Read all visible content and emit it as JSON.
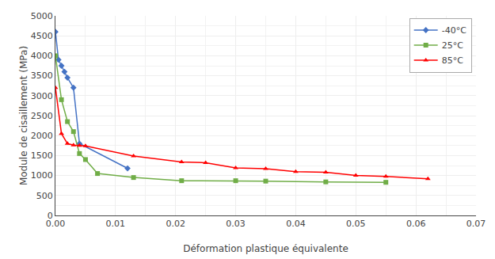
{
  "chart_data": {
    "type": "line",
    "xlabel": "Déformation plastique équivalente",
    "ylabel": "Module de cisaillement (MPa)",
    "xlim": [
      0,
      0.07
    ],
    "ylim": [
      0,
      5000
    ],
    "xticks": [
      {
        "value": 0,
        "label": "0.00"
      },
      0.01,
      0.02,
      0.03,
      0.04,
      0.05,
      0.06,
      0.07
    ],
    "yticks": [
      0,
      500,
      1000,
      1500,
      2000,
      2500,
      3000,
      3500,
      4000,
      4500,
      5000
    ],
    "grid": true,
    "legend": "upper right",
    "series": [
      {
        "name": "-40°C",
        "color": "#4472C4",
        "marker": "diamond",
        "x": [
          0.0,
          0.0005,
          0.001,
          0.0015,
          0.002,
          0.003,
          0.004,
          0.012
        ],
        "values": [
          4600,
          3900,
          3750,
          3600,
          3450,
          3200,
          1800,
          1180
        ]
      },
      {
        "name": "25°C",
        "color": "#70AD47",
        "marker": "square",
        "x": [
          0.0,
          0.001,
          0.002,
          0.003,
          0.004,
          0.005,
          0.007,
          0.013,
          0.021,
          0.03,
          0.035,
          0.045,
          0.055
        ],
        "values": [
          4000,
          2900,
          2350,
          2100,
          1550,
          1400,
          1050,
          950,
          870,
          870,
          860,
          840,
          830
        ]
      },
      {
        "name": "85°C",
        "color": "#FF0000",
        "marker": "triangle-up",
        "x": [
          0.0,
          0.001,
          0.002,
          0.003,
          0.004,
          0.005,
          0.013,
          0.021,
          0.025,
          0.03,
          0.035,
          0.04,
          0.045,
          0.05,
          0.055,
          0.062
        ],
        "values": [
          3200,
          2050,
          1800,
          1760,
          1750,
          1740,
          1490,
          1340,
          1320,
          1190,
          1170,
          1095,
          1080,
          1000,
          975,
          920
        ]
      }
    ]
  }
}
